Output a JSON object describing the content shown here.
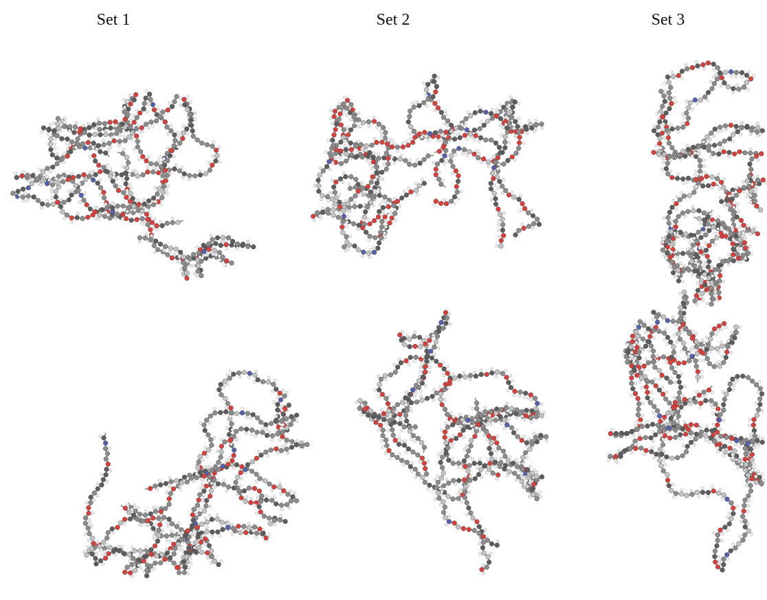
{
  "columns": [
    {
      "label": "Set 1"
    },
    {
      "label": "Set 2"
    },
    {
      "label": "Set 3"
    }
  ]
}
